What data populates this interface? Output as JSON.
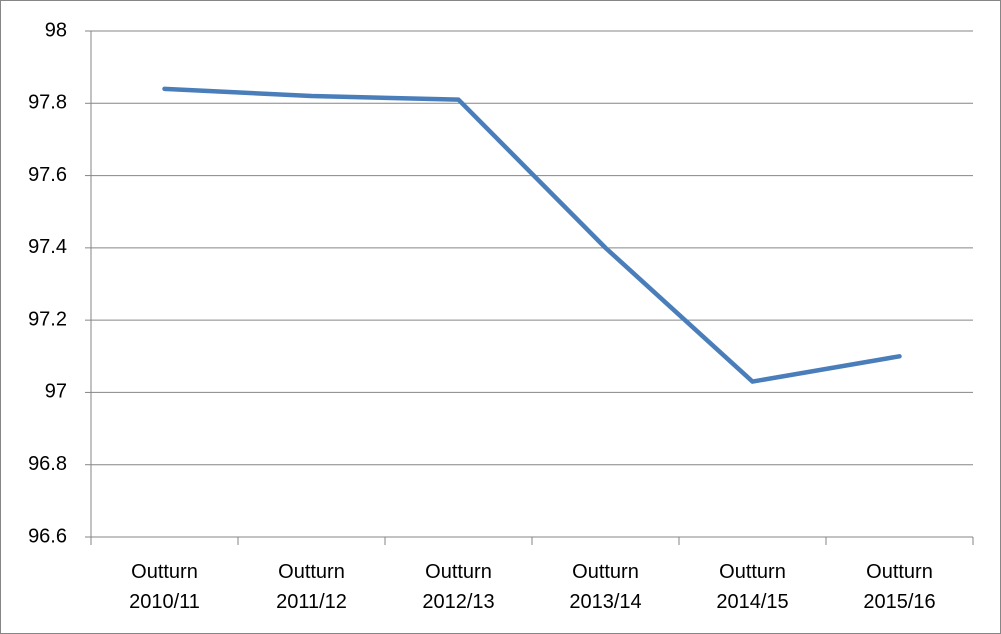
{
  "chart_data": {
    "type": "line",
    "categories": [
      "Outturn 2010/11",
      "Outturn 2011/12",
      "Outturn 2012/13",
      "Outturn 2013/14",
      "Outturn 2014/15",
      "Outturn 2015/16"
    ],
    "values": [
      97.84,
      97.82,
      97.81,
      97.4,
      97.03,
      97.1
    ],
    "color": "#4a7ebb",
    "ylim": [
      96.6,
      98
    ],
    "yticks": [
      96.6,
      96.8,
      97,
      97.2,
      97.4,
      97.6,
      97.8,
      98
    ],
    "grid": true
  }
}
